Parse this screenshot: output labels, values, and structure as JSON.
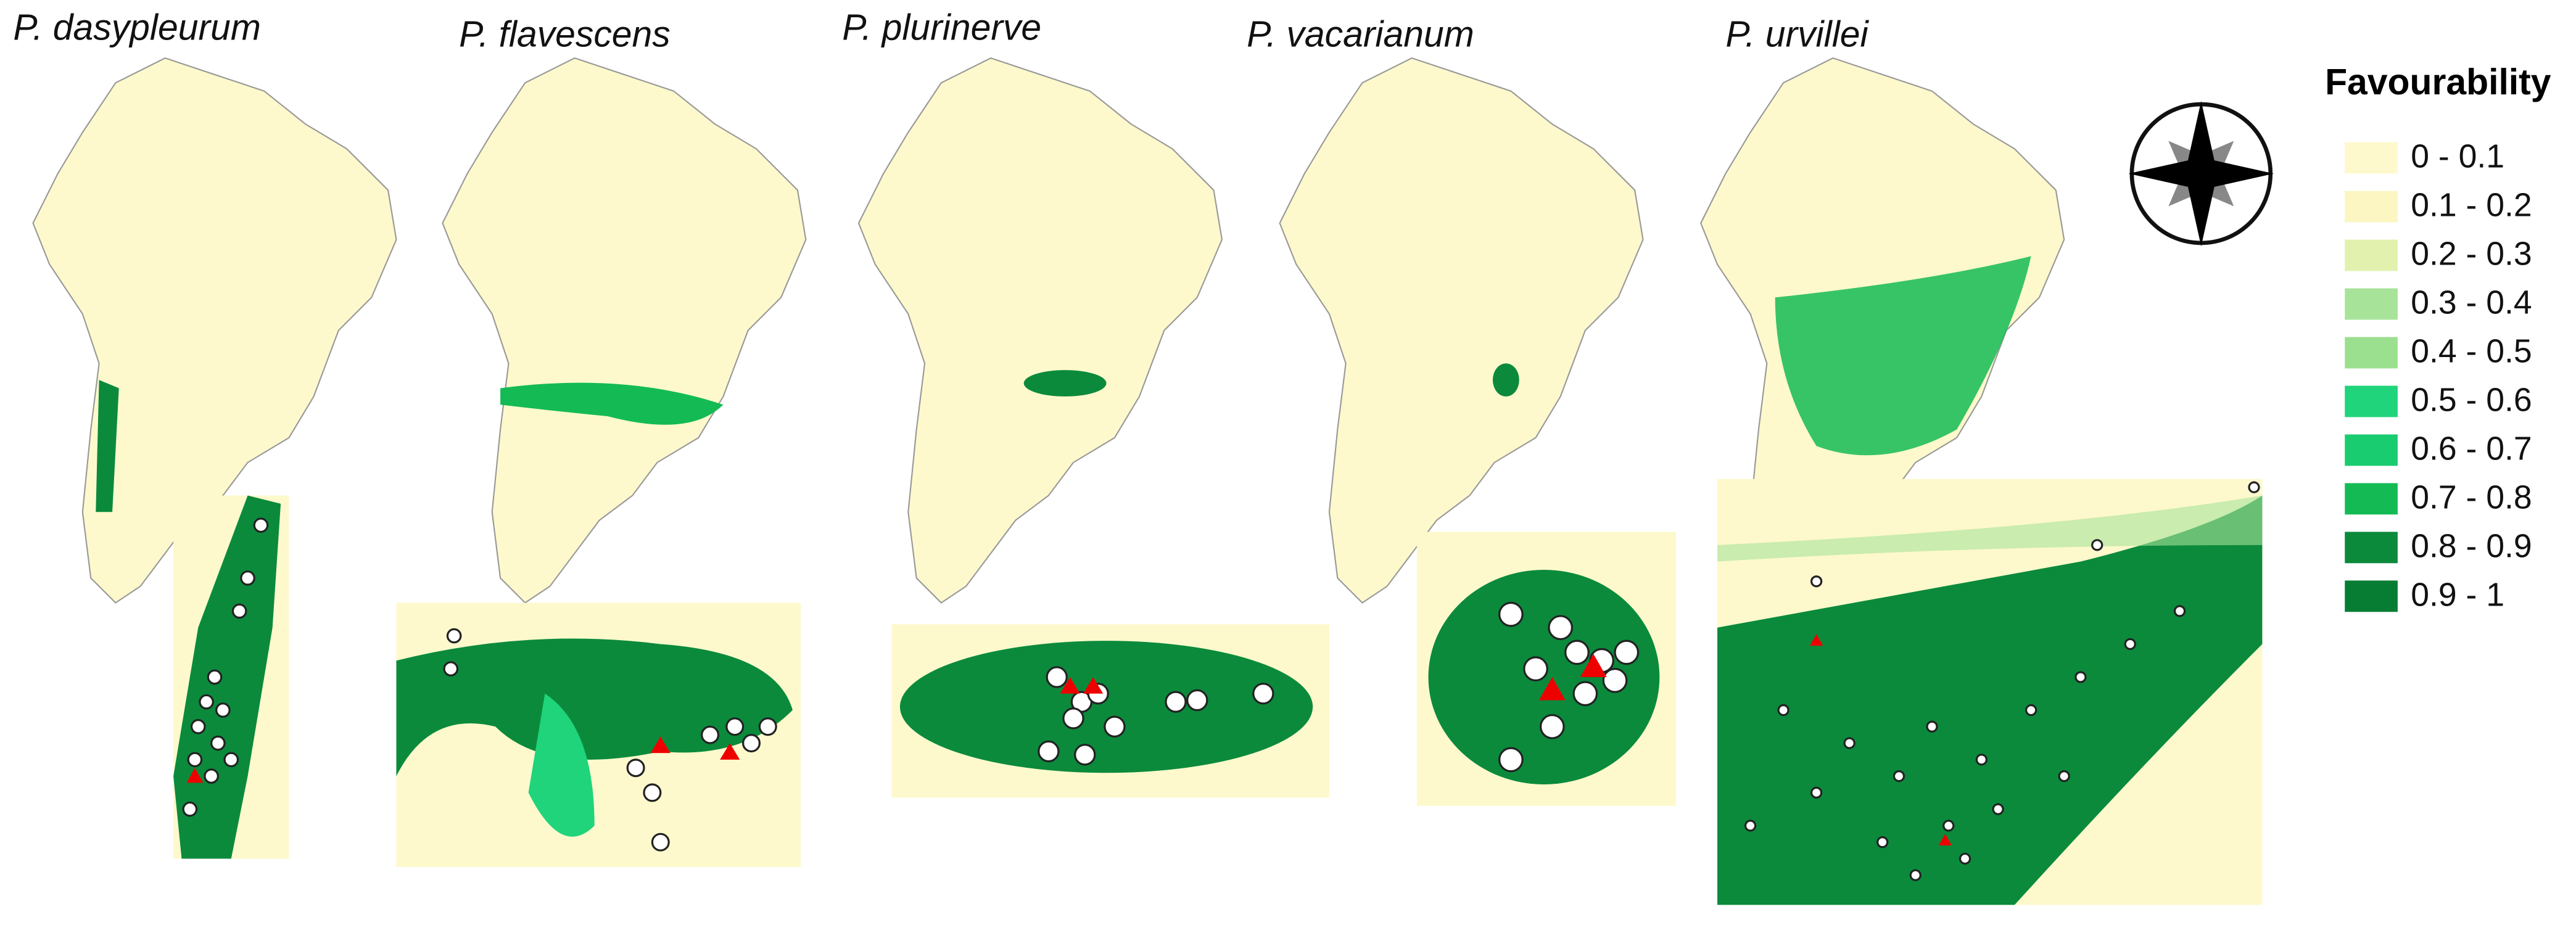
{
  "panels": [
    {
      "title": "P. dasypleurum"
    },
    {
      "title": "P. flavescens"
    },
    {
      "title": "P. plurinerve"
    },
    {
      "title": "P. vacarianum"
    },
    {
      "title": "P. urvillei"
    }
  ],
  "legend": {
    "title": "Favourability",
    "items": [
      {
        "label": "0 - 0.1",
        "color": "#fdf9cc"
      },
      {
        "label": "0.1 - 0.2",
        "color": "#fbf6c2"
      },
      {
        "label": "0.2 - 0.3",
        "color": "#e2f2ae"
      },
      {
        "label": "0.3 - 0.4",
        "color": "#a8e39a"
      },
      {
        "label": "0.4 - 0.5",
        "color": "#9be08e"
      },
      {
        "label": "0.5 - 0.6",
        "color": "#1fd47b"
      },
      {
        "label": "0.6 - 0.7",
        "color": "#19cc70"
      },
      {
        "label": "0.7 - 0.8",
        "color": "#14bb55"
      },
      {
        "label": "0.8 - 0.9",
        "color": "#0b8a3c"
      },
      {
        "label": "0.9 - 1",
        "color": "#077d34"
      }
    ]
  }
}
